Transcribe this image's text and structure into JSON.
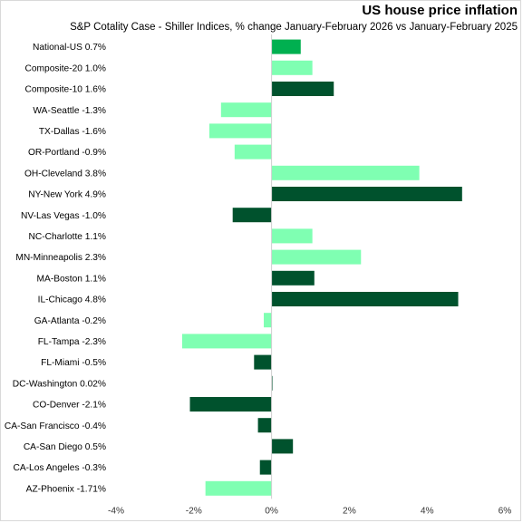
{
  "chart_data": {
    "type": "bar",
    "orientation": "horizontal",
    "title": "US house price inflation",
    "subtitle": "S&P Cotality Case - Shiller Indices, % change January-February  2026 vs January-February  2025",
    "categories": [
      "National-US 0.7%",
      "Composite-20 1.0%",
      "Composite-10 1.6%",
      "WA-Seattle -1.3%",
      "TX-Dallas -1.6%",
      "OR-Portland -0.9%",
      "OH-Cleveland 3.8%",
      "NY-New York 4.9%",
      "NV-Las Vegas -1.0%",
      "NC-Charlotte 1.1%",
      "MN-Minneapolis 2.3%",
      "MA-Boston 1.1%",
      "IL-Chicago 4.8%",
      "GA-Atlanta -0.2%",
      "FL-Tampa -2.3%",
      "FL-Miami -0.5%",
      "DC-Washington 0.02%",
      "CO-Denver -2.1%",
      "CA-San Francisco -0.4%",
      "CA-San Diego 0.5%",
      "CA-Los Angeles -0.3%",
      "AZ-Phoenix -1.71%"
    ],
    "values": [
      0.75,
      1.05,
      1.6,
      -1.3,
      -1.6,
      -0.95,
      3.8,
      4.9,
      -1.0,
      1.05,
      2.3,
      1.1,
      4.8,
      -0.2,
      -2.3,
      -0.45,
      0.02,
      -2.1,
      -0.35,
      0.55,
      -0.3,
      -1.7
    ],
    "bar_colors": [
      "#00b050",
      "#7fffb2",
      "#00522d",
      "#7fffb2",
      "#7fffb2",
      "#7fffb2",
      "#7fffb2",
      "#00522d",
      "#00522d",
      "#7fffb2",
      "#7fffb2",
      "#00522d",
      "#00522d",
      "#7fffb2",
      "#7fffb2",
      "#00522d",
      "#00522d",
      "#00522d",
      "#00522d",
      "#00522d",
      "#00522d",
      "#7fffb2"
    ],
    "xlim": [
      -4,
      6
    ],
    "xticks": [
      -4,
      -2,
      0,
      2,
      4,
      6
    ],
    "xtick_labels": [
      "-4%",
      "-2%",
      "0%",
      "2%",
      "4%",
      "6%"
    ],
    "grid": false,
    "legend": "none"
  }
}
